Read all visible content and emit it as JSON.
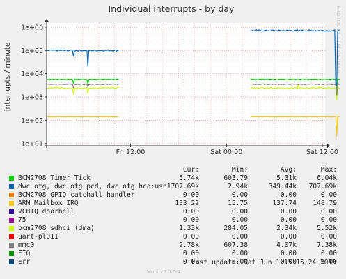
{
  "chart_data": {
    "type": "line",
    "title": "Individual interrupts - by day",
    "ylabel": "interrupts / minute",
    "yscale": "log",
    "ylim": [
      8,
      1500000
    ],
    "yticks": [
      {
        "v": 10,
        "label": "1e+01"
      },
      {
        "v": 100,
        "label": "1e+02"
      },
      {
        "v": 1000,
        "label": "1e+03"
      },
      {
        "v": 10000,
        "label": "1e+04"
      },
      {
        "v": 100000,
        "label": "1e+05"
      },
      {
        "v": 1000000,
        "label": "1e+06"
      }
    ],
    "xrange": [
      0,
      30
    ],
    "xticks": [
      {
        "h": 6,
        "label": "Fri 12:00"
      },
      {
        "h": 18,
        "label": "Sat 00:00"
      },
      {
        "h": 30,
        "label": "Sat 12:00"
      }
    ],
    "xgrid_hours": [
      0,
      2,
      4,
      6,
      8,
      10,
      12,
      14,
      16,
      18,
      20,
      22,
      24,
      26,
      28,
      30
    ],
    "grid": true,
    "segments": [
      [
        -4.5,
        4.6
      ],
      [
        21.0,
        32.2
      ]
    ],
    "series": [
      {
        "name": "BCM2708 Timer Tick",
        "color": "#00cc00",
        "base": 5700,
        "noise": 0.03,
        "dips": [
          [
            -1.1,
            3700
          ],
          [
            0.7,
            3600
          ],
          [
            4.6,
            4800
          ],
          [
            31.8,
            2000
          ]
        ]
      },
      {
        "name": "dwc_otg, dwc_otg_pcd, dwc_otg_hcd:usb1",
        "color": "#0066b3",
        "base": 100000,
        "noise": 0.06,
        "base2": 707000,
        "dips": [
          [
            -1.1,
            55000
          ],
          [
            0.7,
            20000
          ],
          [
            31.75,
            3000
          ],
          [
            31.95,
            600000
          ]
        ]
      },
      {
        "name": "BCM2708 GPIO catchall handler",
        "color": "#ff8000",
        "base": 0
      },
      {
        "name": "ARM Mailbox IRQ",
        "color": "#ffcc00",
        "base": 140,
        "noise": 0.01,
        "dips": [
          [
            31.8,
            20
          ]
        ]
      },
      {
        "name": "VCHIQ doorbell",
        "color": "#330099",
        "base": 0
      },
      {
        "name": "75",
        "color": "#990099",
        "base": 0
      },
      {
        "name": "bcm2708_sdhci (dma)",
        "color": "#ccff00",
        "base": 2400,
        "noise": 0.05,
        "dips": [
          [
            -1.1,
            1300
          ],
          [
            0.7,
            1400
          ],
          [
            27.0,
            3600
          ],
          [
            31.8,
            700
          ]
        ]
      },
      {
        "name": "uart-pl011",
        "color": "#ff0000",
        "base": 0
      },
      {
        "name": "mmc0",
        "color": "#808080",
        "base": 3500,
        "noise": 0.03,
        "dips": [
          [
            -1.1,
            2400
          ],
          [
            0.7,
            2600
          ],
          [
            31.8,
            1200
          ]
        ]
      },
      {
        "name": "FIQ",
        "color": "#008f00",
        "base": 0
      },
      {
        "name": "Err",
        "color": "#00487d",
        "base": 0
      }
    ]
  },
  "sidebar_text": "RRDTOOL / TOBI OETIKER",
  "legend": {
    "headers": [
      "Cur:",
      "Min:",
      "Avg:",
      "Max:"
    ],
    "rows": [
      {
        "name": "BCM2708 Timer Tick",
        "color": "#00cc00",
        "cur": "5.74k",
        "min": "603.79",
        "avg": "5.31k",
        "max": "6.04k"
      },
      {
        "name": "dwc_otg, dwc_otg_pcd, dwc_otg_hcd:usb1",
        "color": "#0066b3",
        "cur": "707.69k",
        "min": "2.94k",
        "avg": "349.44k",
        "max": "707.69k"
      },
      {
        "name": "BCM2708 GPIO catchall handler",
        "color": "#ff8000",
        "cur": "0.00",
        "min": "0.00",
        "avg": "0.00",
        "max": "0.00"
      },
      {
        "name": "ARM Mailbox IRQ",
        "color": "#ffcc00",
        "cur": "133.22",
        "min": "15.75",
        "avg": "137.74",
        "max": "148.79"
      },
      {
        "name": "VCHIQ doorbell",
        "color": "#330099",
        "cur": "0.00",
        "min": "0.00",
        "avg": "0.00",
        "max": "0.00"
      },
      {
        "name": "75",
        "color": "#990099",
        "cur": "0.00",
        "min": "0.00",
        "avg": "0.00",
        "max": "0.00"
      },
      {
        "name": "bcm2708_sdhci (dma)",
        "color": "#ccff00",
        "cur": "1.33k",
        "min": "284.05",
        "avg": "2.34k",
        "max": "5.52k"
      },
      {
        "name": "uart-pl011",
        "color": "#ff0000",
        "cur": "0.00",
        "min": "0.00",
        "avg": "0.00",
        "max": "0.00"
      },
      {
        "name": "mmc0",
        "color": "#808080",
        "cur": "2.78k",
        "min": "607.38",
        "avg": "4.07k",
        "max": "7.38k"
      },
      {
        "name": "FIQ",
        "color": "#008f00",
        "cur": "0.00",
        "min": "0.00",
        "avg": "0.00",
        "max": "0.00"
      },
      {
        "name": "Err",
        "color": "#00487d",
        "cur": "0.00",
        "min": "0.00",
        "avg": "0.00",
        "max": "0.00"
      }
    ]
  },
  "footer": {
    "last_update": "Last update:  Sat Jun  1 15:15:24 2013"
  },
  "munin": "Munin 2.0.6-4"
}
